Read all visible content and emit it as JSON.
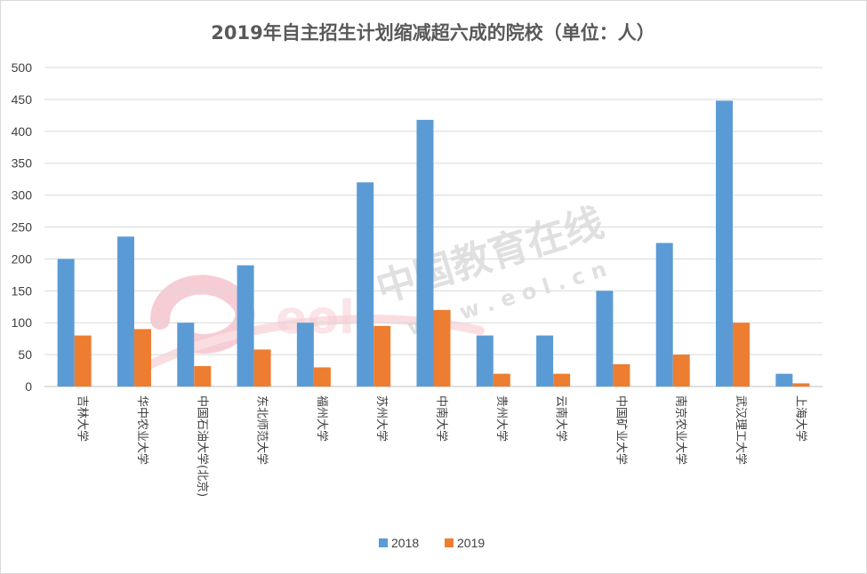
{
  "chart_data": {
    "type": "bar",
    "title": "2019年自主招生计划缩减超六成的院校（单位：人）",
    "categories": [
      "吉林大学",
      "华中农业大学",
      "中国石油大学(北京)",
      "东北师范大学",
      "福州大学",
      "苏州大学",
      "中南大学",
      "贵州大学",
      "云南大学",
      "中国矿业大学",
      "南京农业大学",
      "武汉理工大学",
      "上海大学"
    ],
    "series": [
      {
        "name": "2018",
        "color": "#5b9bd5",
        "values": [
          200,
          235,
          100,
          190,
          100,
          320,
          418,
          80,
          80,
          150,
          225,
          448,
          20
        ]
      },
      {
        "name": "2019",
        "color": "#ed7d31",
        "values": [
          80,
          90,
          32,
          58,
          30,
          95,
          120,
          20,
          20,
          35,
          50,
          100,
          5
        ]
      }
    ],
    "ylim": [
      0,
      500
    ],
    "yticks": [
      0,
      50,
      100,
      150,
      200,
      250,
      300,
      350,
      400,
      450,
      500
    ],
    "grid": true,
    "legend": "bottom"
  },
  "watermark": {
    "text": "中国教育在线",
    "url": "w w w . e o l . c n",
    "logo": "eol"
  }
}
